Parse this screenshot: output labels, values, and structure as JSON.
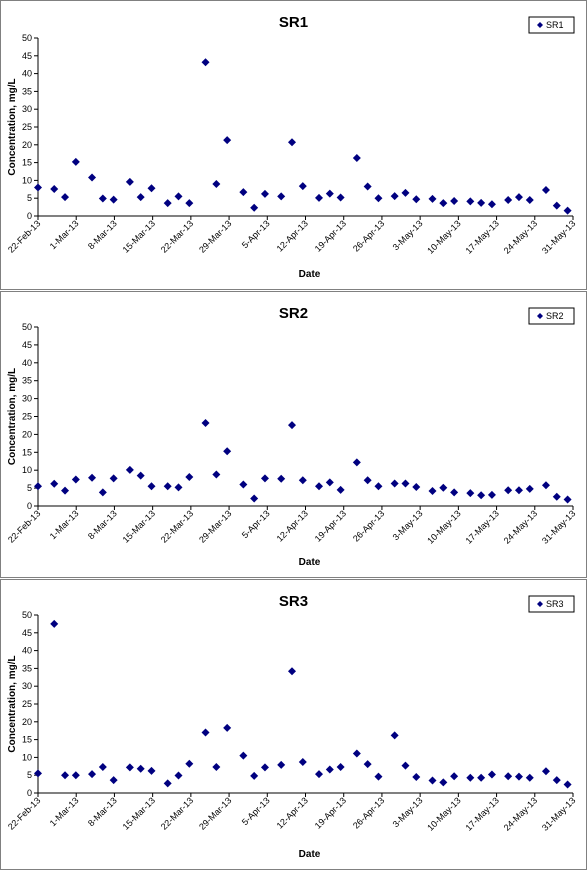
{
  "chart_data": [
    {
      "type": "scatter",
      "title": "SR1",
      "xlabel": "Date",
      "ylabel": "Concentration, mg/L",
      "ylim": [
        0,
        50
      ],
      "yticks": [
        0,
        5,
        10,
        15,
        20,
        25,
        30,
        35,
        40,
        45,
        50
      ],
      "xticks": [
        "22-Feb-13",
        "1-Mar-13",
        "8-Mar-13",
        "15-Mar-13",
        "22-Mar-13",
        "29-Mar-13",
        "5-Apr-13",
        "12-Apr-13",
        "19-Apr-13",
        "26-Apr-13",
        "3-May-13",
        "10-May-13",
        "17-May-13",
        "24-May-13",
        "31-May-13"
      ],
      "xrange": [
        "2013-02-22",
        "2013-06-01"
      ],
      "grid": false,
      "legend": "top-right",
      "marker_color": "#000080",
      "series": [
        {
          "name": "SR1",
          "x": [
            "2013-02-22",
            "2013-02-25",
            "2013-02-27",
            "2013-03-01",
            "2013-03-04",
            "2013-03-06",
            "2013-03-08",
            "2013-03-11",
            "2013-03-13",
            "2013-03-15",
            "2013-03-18",
            "2013-03-20",
            "2013-03-22",
            "2013-03-25",
            "2013-03-27",
            "2013-03-29",
            "2013-04-01",
            "2013-04-03",
            "2013-04-05",
            "2013-04-08",
            "2013-04-10",
            "2013-04-12",
            "2013-04-15",
            "2013-04-17",
            "2013-04-19",
            "2013-04-22",
            "2013-04-24",
            "2013-04-26",
            "2013-04-29",
            "2013-05-01",
            "2013-05-03",
            "2013-05-06",
            "2013-05-08",
            "2013-05-10",
            "2013-05-13",
            "2013-05-15",
            "2013-05-17",
            "2013-05-20",
            "2013-05-22",
            "2013-05-24",
            "2013-05-27",
            "2013-05-29",
            "2013-05-31"
          ],
          "values": [
            8.0,
            7.6,
            5.3,
            15.2,
            10.8,
            4.9,
            4.6,
            9.6,
            5.3,
            7.8,
            3.6,
            5.5,
            3.6,
            43.2,
            9.0,
            21.3,
            6.7,
            2.3,
            6.2,
            5.5,
            20.7,
            8.4,
            5.1,
            6.3,
            5.2,
            16.3,
            8.3,
            5.0,
            5.6,
            6.5,
            4.7,
            4.8,
            3.6,
            4.2,
            4.1,
            3.7,
            3.3,
            4.5,
            5.3,
            4.5,
            7.3,
            2.9,
            1.5
          ]
        }
      ]
    },
    {
      "type": "scatter",
      "title": "SR2",
      "xlabel": "Date",
      "ylabel": "Concentration, mg/L",
      "ylim": [
        0,
        50
      ],
      "yticks": [
        0,
        5,
        10,
        15,
        20,
        25,
        30,
        35,
        40,
        45,
        50
      ],
      "xticks": [
        "22-Feb-13",
        "1-Mar-13",
        "8-Mar-13",
        "15-Mar-13",
        "22-Mar-13",
        "29-Mar-13",
        "5-Apr-13",
        "12-Apr-13",
        "19-Apr-13",
        "26-Apr-13",
        "3-May-13",
        "10-May-13",
        "17-May-13",
        "24-May-13",
        "31-May-13"
      ],
      "xrange": [
        "2013-02-22",
        "2013-06-01"
      ],
      "grid": false,
      "legend": "top-right",
      "marker_color": "#000080",
      "series": [
        {
          "name": "SR2",
          "x": [
            "2013-02-22",
            "2013-02-25",
            "2013-02-27",
            "2013-03-01",
            "2013-03-04",
            "2013-03-06",
            "2013-03-08",
            "2013-03-11",
            "2013-03-13",
            "2013-03-15",
            "2013-03-18",
            "2013-03-20",
            "2013-03-22",
            "2013-03-25",
            "2013-03-27",
            "2013-03-29",
            "2013-04-01",
            "2013-04-03",
            "2013-04-05",
            "2013-04-08",
            "2013-04-10",
            "2013-04-12",
            "2013-04-15",
            "2013-04-17",
            "2013-04-19",
            "2013-04-22",
            "2013-04-24",
            "2013-04-26",
            "2013-04-29",
            "2013-05-01",
            "2013-05-03",
            "2013-05-06",
            "2013-05-08",
            "2013-05-10",
            "2013-05-13",
            "2013-05-15",
            "2013-05-17",
            "2013-05-20",
            "2013-05-22",
            "2013-05-24",
            "2013-05-27",
            "2013-05-29",
            "2013-05-31"
          ],
          "values": [
            5.5,
            6.2,
            4.3,
            7.4,
            7.9,
            3.8,
            7.7,
            10.1,
            8.5,
            5.5,
            5.5,
            5.2,
            8.1,
            23.2,
            8.8,
            15.3,
            6.0,
            2.1,
            7.7,
            7.6,
            22.6,
            7.2,
            5.5,
            6.6,
            4.5,
            12.2,
            7.2,
            5.5,
            6.3,
            6.3,
            5.3,
            4.2,
            5.1,
            3.8,
            3.6,
            3.0,
            3.1,
            4.4,
            4.4,
            4.8,
            5.8,
            2.6,
            1.8
          ]
        }
      ]
    },
    {
      "type": "scatter",
      "title": "SR3",
      "xlabel": "Date",
      "ylabel": "Concentration, mg/L",
      "ylim": [
        0,
        50
      ],
      "yticks": [
        0,
        5,
        10,
        15,
        20,
        25,
        30,
        35,
        40,
        45,
        50
      ],
      "xticks": [
        "22-Feb-13",
        "1-Mar-13",
        "8-Mar-13",
        "15-Mar-13",
        "22-Mar-13",
        "29-Mar-13",
        "5-Apr-13",
        "12-Apr-13",
        "19-Apr-13",
        "26-Apr-13",
        "3-May-13",
        "10-May-13",
        "17-May-13",
        "24-May-13",
        "31-May-13"
      ],
      "xrange": [
        "2013-02-22",
        "2013-06-01"
      ],
      "grid": false,
      "legend": "top-right",
      "marker_color": "#000080",
      "series": [
        {
          "name": "SR3",
          "x": [
            "2013-02-22",
            "2013-02-25",
            "2013-02-27",
            "2013-03-01",
            "2013-03-04",
            "2013-03-06",
            "2013-03-08",
            "2013-03-11",
            "2013-03-13",
            "2013-03-15",
            "2013-03-18",
            "2013-03-20",
            "2013-03-22",
            "2013-03-25",
            "2013-03-27",
            "2013-03-29",
            "2013-04-01",
            "2013-04-03",
            "2013-04-05",
            "2013-04-08",
            "2013-04-10",
            "2013-04-12",
            "2013-04-15",
            "2013-04-17",
            "2013-04-19",
            "2013-04-22",
            "2013-04-24",
            "2013-04-26",
            "2013-04-29",
            "2013-05-01",
            "2013-05-03",
            "2013-05-06",
            "2013-05-08",
            "2013-05-10",
            "2013-05-13",
            "2013-05-15",
            "2013-05-17",
            "2013-05-20",
            "2013-05-22",
            "2013-05-24",
            "2013-05-27",
            "2013-05-29",
            "2013-05-31"
          ],
          "values": [
            5.5,
            47.5,
            5.0,
            5.0,
            5.3,
            7.3,
            3.6,
            7.2,
            6.8,
            6.2,
            2.7,
            4.9,
            8.2,
            17.0,
            7.3,
            18.3,
            10.5,
            4.8,
            7.2,
            7.9,
            34.2,
            8.7,
            5.3,
            6.6,
            7.3,
            11.1,
            8.1,
            4.6,
            16.2,
            7.7,
            4.5,
            3.5,
            3.0,
            4.7,
            4.3,
            4.3,
            5.2,
            4.7,
            4.6,
            4.3,
            6.1,
            3.6,
            2.4
          ]
        }
      ]
    }
  ]
}
